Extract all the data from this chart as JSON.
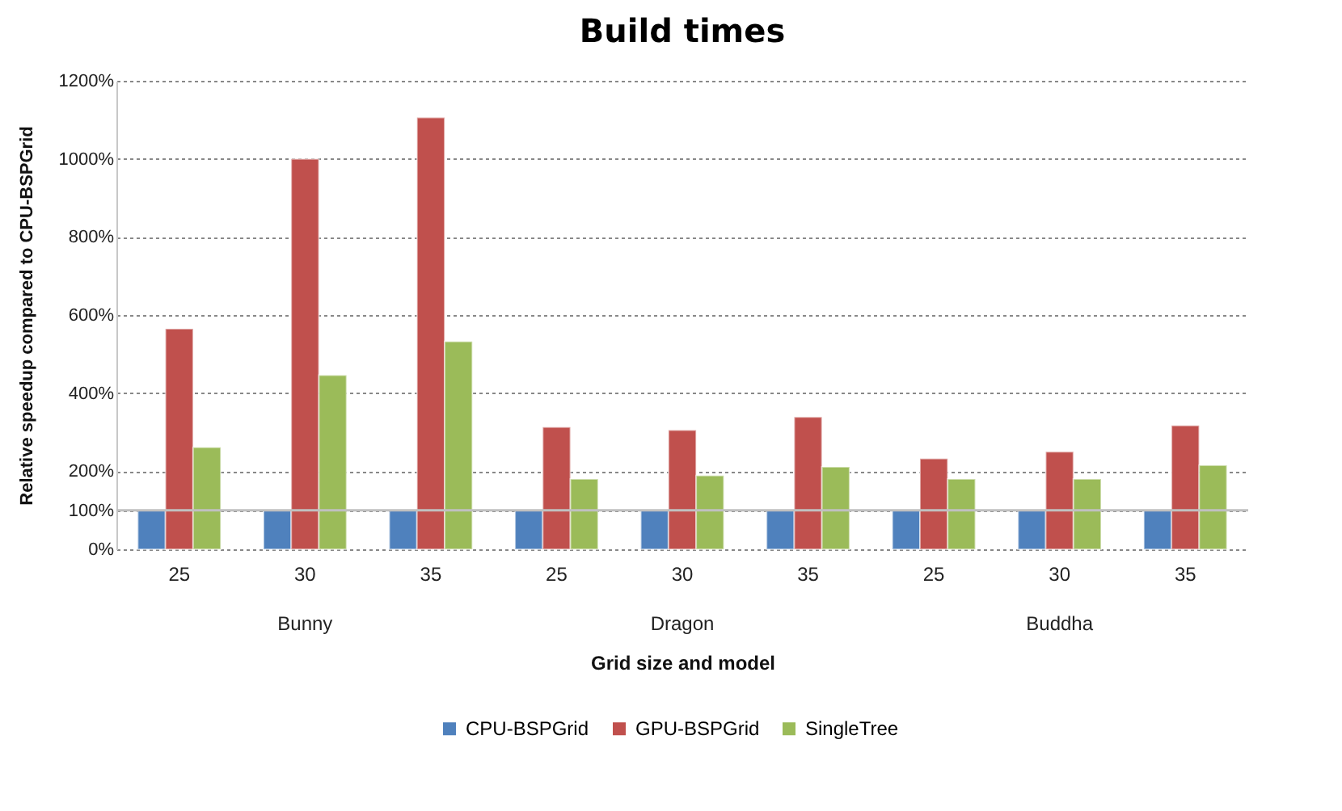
{
  "chart_data": {
    "type": "bar",
    "title": "Build times",
    "xlabel": "Grid size and model",
    "ylabel": "Relative speedup compared to CPU-BSPGrid",
    "categories": [
      "25",
      "30",
      "35",
      "25",
      "30",
      "35",
      "25",
      "30",
      "35"
    ],
    "annotations": [
      "Bunny",
      "Dragon",
      "Buddha"
    ],
    "series": [
      {
        "name": "CPU-BSPGrid",
        "color": "#4f81bd",
        "values": [
          100,
          100,
          100,
          100,
          100,
          100,
          100,
          100,
          100
        ]
      },
      {
        "name": "GPU-BSPGrid",
        "color": "#c0504d",
        "values": [
          565,
          1000,
          1106,
          313,
          305,
          339,
          232,
          250,
          317
        ]
      },
      {
        "name": "SingleTree",
        "color": "#9bbb59",
        "values": [
          261,
          446,
          532,
          180,
          189,
          211,
          180,
          180,
          215
        ]
      }
    ],
    "ylim": [
      0,
      1200
    ],
    "yticks": [
      {
        "value": 0,
        "label": "0%"
      },
      {
        "value": 100,
        "label": "100%"
      },
      {
        "value": 200,
        "label": "200%"
      },
      {
        "value": 400,
        "label": "400%"
      },
      {
        "value": 600,
        "label": "600%"
      },
      {
        "value": 800,
        "label": "800%"
      },
      {
        "value": 1000,
        "label": "1000%"
      },
      {
        "value": 1200,
        "label": "1200%"
      }
    ],
    "ref_lines": [
      {
        "axis": "y",
        "value": 100,
        "color": "#c0c0c0"
      }
    ],
    "grid": "y",
    "legend": "bottom"
  }
}
